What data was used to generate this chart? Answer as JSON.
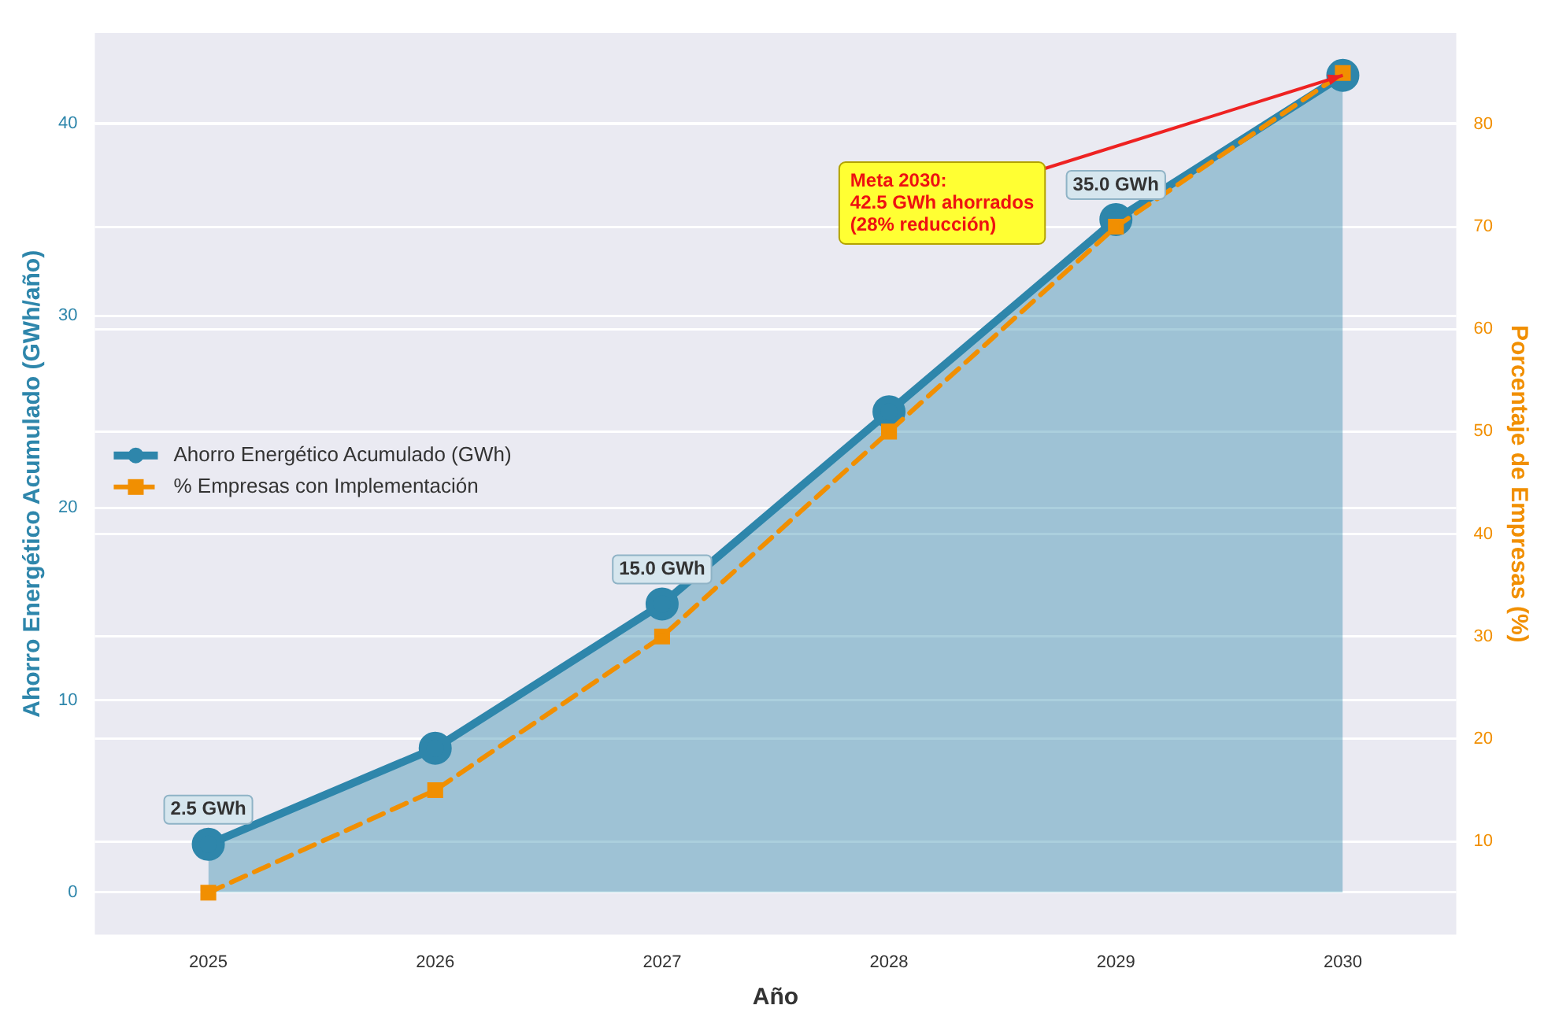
{
  "chart_data": {
    "type": "line",
    "xlabel": "Año",
    "ylabel": "Ahorro Energético Acumulado (GWh/año)",
    "y2label": "Porcentaje de Empresas (%)",
    "categories": [
      "2025",
      "2026",
      "2027",
      "2028",
      "2029",
      "2030"
    ],
    "series": [
      {
        "name": "Ahorro Energético Acumulado (GWh)",
        "type": "area",
        "color": "#2e86ab",
        "values": [
          2.5,
          7.5,
          15.0,
          25.0,
          35.0,
          42.5
        ],
        "marker": "circle",
        "line_style": "solid",
        "value_labels": [
          "2.5 GWh",
          null,
          "15.0 GWh",
          null,
          "35.0 GWh",
          null
        ]
      },
      {
        "name": "% Empresas con Implementación",
        "type": "line",
        "axis": "y2",
        "color": "#f18f01",
        "values": [
          5,
          15,
          30,
          50,
          70,
          85
        ],
        "marker": "square",
        "line_style": "dashed"
      }
    ],
    "ylim": [
      -2.2,
      44.7
    ],
    "yticks": [
      0,
      10,
      20,
      30,
      40
    ],
    "y2lim": [
      0.9,
      88.9
    ],
    "y2ticks": [
      10,
      20,
      30,
      40,
      50,
      60,
      70,
      80
    ],
    "grid": "y",
    "legend": "left",
    "annotations": [
      {
        "text": "Meta 2030:\n42.5 GWh ahorrados\n(28% reducción)",
        "x": "2030",
        "y": 42.5
      }
    ]
  }
}
